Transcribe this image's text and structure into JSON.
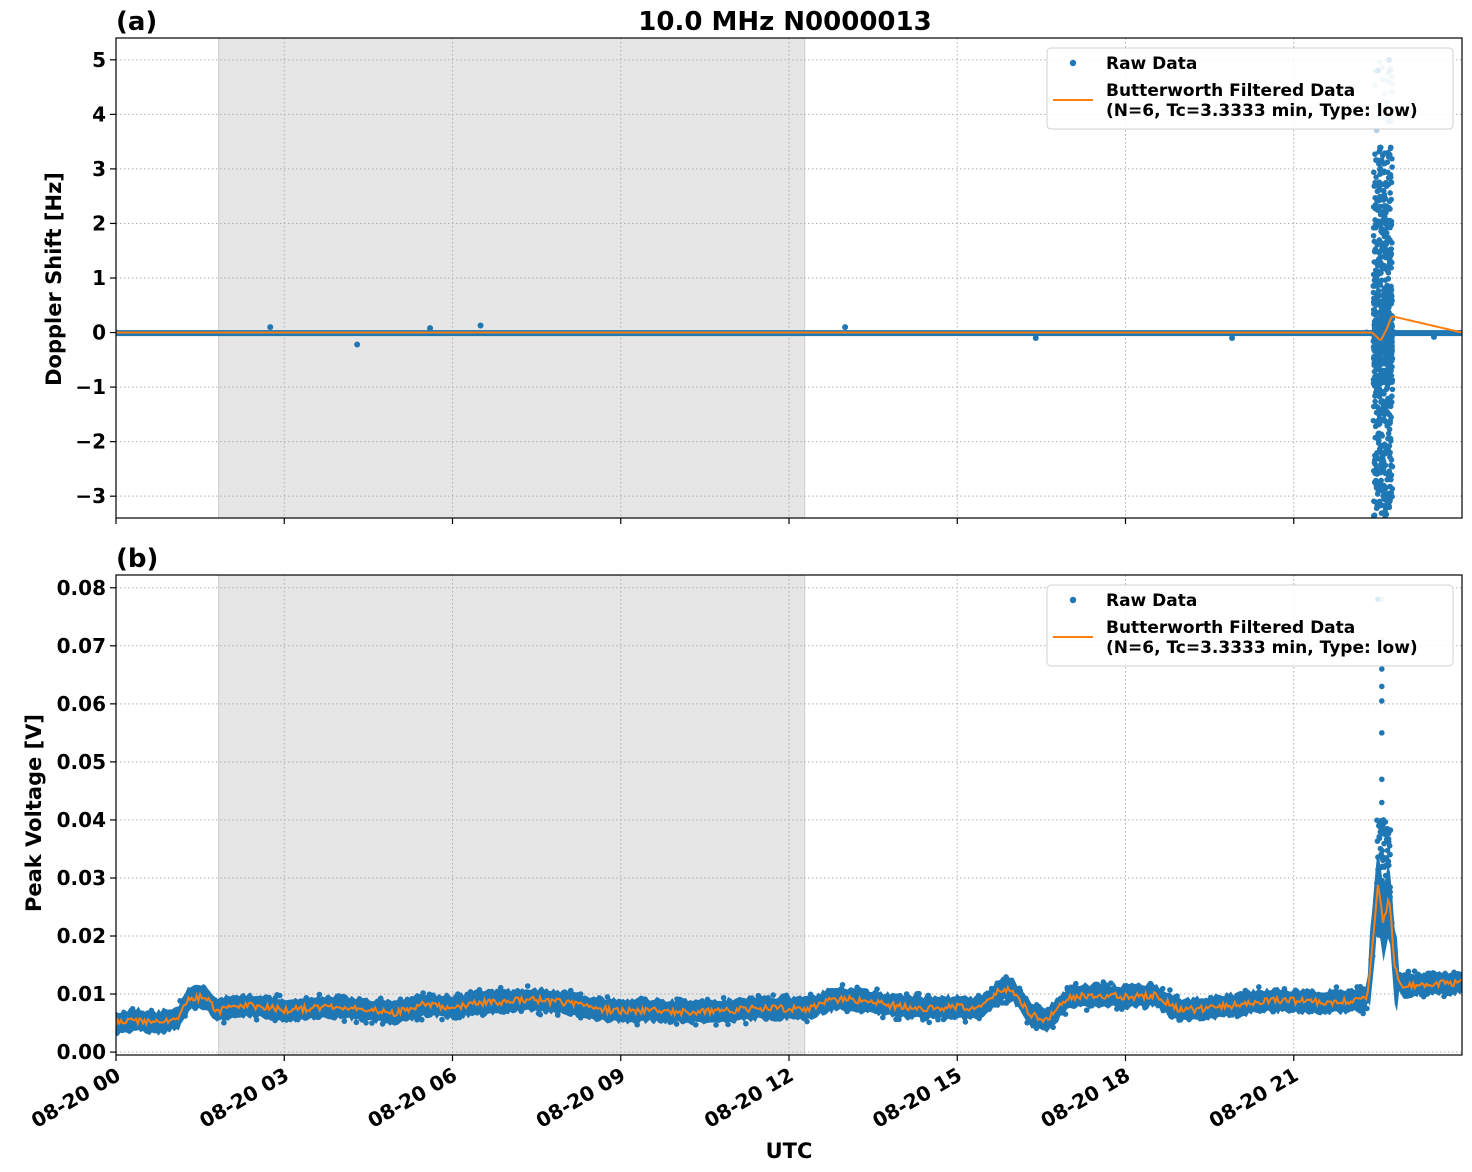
{
  "figure_title": "10.0 MHz N0000013",
  "colors": {
    "raw": "#1f77b4",
    "filtered": "#ff7f0e",
    "shade": "#e6e6e6",
    "grid": "#b0b0b0"
  },
  "legend": {
    "raw_label": "Raw Data",
    "filtered_label_line1": "Butterworth Filtered Data",
    "filtered_label_line2": "(N=6, Tc=3.3333 min, Type: low)"
  },
  "chart_data": [
    {
      "type": "scatter",
      "panel_label": "(a)",
      "ylabel": "Doppler Shift [Hz]",
      "xlabel": "UTC",
      "xlim_hours": [
        0,
        24
      ],
      "ylim": [
        -3.4,
        5.4
      ],
      "yticks": [
        -3,
        -2,
        -1,
        0,
        1,
        2,
        3,
        4,
        5
      ],
      "ytick_labels": [
        "−3",
        "−2",
        "−1",
        "0",
        "1",
        "2",
        "3",
        "4",
        "5"
      ],
      "xtick_labels": [
        "08-20 00",
        "08-20 03",
        "08-20 06",
        "08-20 09",
        "08-20 12",
        "08-20 15",
        "08-20 18",
        "08-20 21"
      ],
      "shaded_interval_hours": [
        1.83,
        12.28
      ],
      "grid": true,
      "legend_position": "top-right",
      "series": [
        {
          "name": "Raw Data",
          "style": "points",
          "x": [
            0,
            2.75,
            4.3,
            5.6,
            6.5,
            13.0,
            16.4,
            19.9,
            22.3,
            22.5,
            22.6,
            22.7,
            22.8,
            23.5,
            24
          ],
          "y": [
            0.0,
            0.1,
            -0.22,
            0.08,
            0.13,
            0.1,
            -0.1,
            -0.1,
            0.0,
            4.8,
            -3.0,
            5.0,
            0.0,
            -0.08,
            0.0
          ]
        },
        {
          "name": "Butterworth Filtered Data (N=6, Tc=3.3333 min, Type: low)",
          "style": "line",
          "x": [
            0,
            6,
            12,
            18,
            22.4,
            22.55,
            22.65,
            22.75,
            24
          ],
          "y": [
            0.0,
            0.0,
            0.0,
            0.0,
            0.0,
            -0.15,
            0.05,
            0.3,
            0.0
          ]
        }
      ]
    },
    {
      "type": "scatter",
      "panel_label": "(b)",
      "ylabel": "Peak Voltage [V]",
      "xlabel": "UTC",
      "xlim_hours": [
        0,
        24
      ],
      "ylim": [
        -0.0005,
        0.0822
      ],
      "yticks": [
        0.0,
        0.01,
        0.02,
        0.03,
        0.04,
        0.05,
        0.06,
        0.07,
        0.08
      ],
      "ytick_labels": [
        "0.00",
        "0.01",
        "0.02",
        "0.03",
        "0.04",
        "0.05",
        "0.06",
        "0.07",
        "0.08"
      ],
      "xtick_labels": [
        "08-20 00",
        "08-20 03",
        "08-20 06",
        "08-20 09",
        "08-20 12",
        "08-20 15",
        "08-20 18",
        "08-20 21"
      ],
      "shaded_interval_hours": [
        1.83,
        12.28
      ],
      "grid": true,
      "legend_position": "top-right",
      "series": [
        {
          "name": "Butterworth Filtered Data (N=6, Tc=3.3333 min, Type: low)",
          "style": "line",
          "x": [
            0,
            0.4,
            0.7,
            1.1,
            1.3,
            1.6,
            1.8,
            2.0,
            2.5,
            3.0,
            3.5,
            4.0,
            4.5,
            5.0,
            5.5,
            6.0,
            6.5,
            7.0,
            7.5,
            8.0,
            8.5,
            9.0,
            9.5,
            10.0,
            10.5,
            11.0,
            11.5,
            12.0,
            12.3,
            12.7,
            13.0,
            13.5,
            14.0,
            14.5,
            15.0,
            15.4,
            15.8,
            16.0,
            16.3,
            16.6,
            17.0,
            17.5,
            18.0,
            18.5,
            19.0,
            19.5,
            20.0,
            20.5,
            21.0,
            21.5,
            22.0,
            22.3,
            22.4,
            22.5,
            22.6,
            22.7,
            22.8,
            22.9,
            23.5,
            24
          ],
          "y": [
            0.005,
            0.0055,
            0.005,
            0.0058,
            0.0092,
            0.0095,
            0.007,
            0.0078,
            0.008,
            0.0072,
            0.0076,
            0.0078,
            0.0072,
            0.0068,
            0.0082,
            0.0078,
            0.0085,
            0.0088,
            0.009,
            0.0085,
            0.0076,
            0.007,
            0.0072,
            0.007,
            0.0069,
            0.0072,
            0.0076,
            0.0075,
            0.0074,
            0.0088,
            0.0092,
            0.0085,
            0.0078,
            0.0076,
            0.0078,
            0.0075,
            0.011,
            0.0105,
            0.0065,
            0.0055,
            0.0095,
            0.0098,
            0.0095,
            0.0098,
            0.0072,
            0.0076,
            0.0082,
            0.0089,
            0.0088,
            0.0086,
            0.0088,
            0.009,
            0.018,
            0.029,
            0.022,
            0.027,
            0.015,
            0.0115,
            0.0118,
            0.012
          ]
        },
        {
          "name": "Raw Data",
          "style": "points",
          "x": [
            0,
            1.3,
            2.0,
            4.0,
            5.5,
            6.0,
            8.0,
            10.0,
            12.0,
            13.0,
            15.8,
            16.4,
            17.5,
            19.0,
            21.0,
            22.3,
            22.5,
            22.6,
            22.7,
            23.0,
            24
          ],
          "y": [
            0.006,
            0.0095,
            0.0075,
            0.0075,
            0.0075,
            0.008,
            0.009,
            0.007,
            0.0075,
            0.009,
            0.011,
            0.005,
            0.0098,
            0.0075,
            0.009,
            0.009,
            0.078,
            0.04,
            0.038,
            0.012,
            0.012
          ]
        }
      ]
    }
  ]
}
